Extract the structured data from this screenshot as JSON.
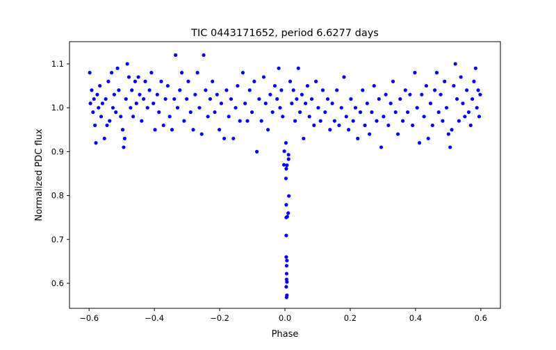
{
  "chart_data": {
    "type": "scatter",
    "title": "TIC 0443171652, period 6.6277 days",
    "xlabel": "Phase",
    "ylabel": "Normalized PDC flux",
    "xlim": [
      -0.66,
      0.66
    ],
    "ylim": [
      0.543,
      1.1506
    ],
    "xticks": [
      -0.6,
      -0.4,
      -0.2,
      0.0,
      0.2,
      0.4,
      0.6
    ],
    "xtick_labels": [
      "−0.6",
      "−0.4",
      "−0.2",
      "0.0",
      "0.2",
      "0.4",
      "0.6"
    ],
    "yticks": [
      0.6,
      0.7,
      0.8,
      0.9,
      1.0,
      1.1
    ],
    "ytick_labels": [
      "0.6",
      "0.7",
      "0.8",
      "0.9",
      "1.0",
      "1.1"
    ],
    "grid": false,
    "marker_color": "#0000ff",
    "series": [
      {
        "name": "flux",
        "points": [
          [
            -0.598,
            1.08
          ],
          [
            -0.596,
            1.01
          ],
          [
            -0.592,
            1.04
          ],
          [
            -0.588,
            0.99
          ],
          [
            -0.585,
            1.02
          ],
          [
            -0.582,
            0.96
          ],
          [
            -0.579,
            0.92
          ],
          [
            -0.575,
            1.03
          ],
          [
            -0.571,
            1.0
          ],
          [
            -0.567,
            1.05
          ],
          [
            -0.563,
            0.98
          ],
          [
            -0.559,
            1.01
          ],
          [
            -0.553,
            0.93
          ],
          [
            -0.549,
            1.02
          ],
          [
            -0.545,
            0.96
          ],
          [
            -0.541,
            1.06
          ],
          [
            -0.537,
            0.97
          ],
          [
            -0.531,
            1.08
          ],
          [
            -0.527,
            1.0
          ],
          [
            -0.523,
            1.03
          ],
          [
            -0.518,
            0.99
          ],
          [
            -0.513,
            1.09
          ],
          [
            -0.509,
            1.04
          ],
          [
            -0.503,
            0.98
          ],
          [
            -0.497,
            0.95
          ],
          [
            -0.494,
            0.91
          ],
          [
            -0.491,
            0.93
          ],
          [
            -0.487,
            1.02
          ],
          [
            -0.483,
            1.1
          ],
          [
            -0.478,
            1.07
          ],
          [
            -0.473,
            1.0
          ],
          [
            -0.469,
            1.04
          ],
          [
            -0.465,
            0.98
          ],
          [
            -0.459,
            1.06
          ],
          [
            -0.455,
            1.01
          ],
          [
            -0.449,
            1.07
          ],
          [
            -0.445,
            1.03
          ],
          [
            -0.439,
            0.97
          ],
          [
            -0.433,
            1.02
          ],
          [
            -0.428,
            1.06
          ],
          [
            -0.421,
            1.0
          ],
          [
            -0.415,
            1.04
          ],
          [
            -0.409,
            1.08
          ],
          [
            -0.403,
            1.01
          ],
          [
            -0.398,
            0.95
          ],
          [
            -0.391,
            1.03
          ],
          [
            -0.386,
            0.99
          ],
          [
            -0.379,
            1.06
          ],
          [
            -0.372,
            0.96
          ],
          [
            -0.366,
            1.02
          ],
          [
            -0.359,
            1.05
          ],
          [
            -0.353,
            0.98
          ],
          [
            -0.346,
            0.95
          ],
          [
            -0.339,
            1.02
          ],
          [
            -0.335,
            1.12
          ],
          [
            -0.329,
            1.0
          ],
          [
            -0.322,
            1.04
          ],
          [
            -0.316,
            1.08
          ],
          [
            -0.309,
            0.97
          ],
          [
            -0.301,
            1.02
          ],
          [
            -0.296,
            1.06
          ],
          [
            -0.289,
            0.99
          ],
          [
            -0.281,
            0.95
          ],
          [
            -0.275,
            1.03
          ],
          [
            -0.268,
            1.08
          ],
          [
            -0.262,
            1.0
          ],
          [
            -0.255,
            0.94
          ],
          [
            -0.249,
            1.12
          ],
          [
            -0.243,
            1.04
          ],
          [
            -0.236,
            0.98
          ],
          [
            -0.229,
            1.02
          ],
          [
            -0.222,
            1.06
          ],
          [
            -0.215,
            0.99
          ],
          [
            -0.208,
            1.03
          ],
          [
            -0.201,
            0.95
          ],
          [
            -0.195,
            1.01
          ],
          [
            -0.186,
            0.93
          ],
          [
            -0.179,
            1.04
          ],
          [
            -0.172,
            0.98
          ],
          [
            -0.165,
            1.02
          ],
          [
            -0.158,
            0.93
          ],
          [
            -0.151,
            1.0
          ],
          [
            -0.145,
            1.05
          ],
          [
            -0.138,
            0.97
          ],
          [
            -0.129,
            1.08
          ],
          [
            -0.122,
            1.01
          ],
          [
            -0.115,
            0.97
          ],
          [
            -0.108,
            1.04
          ],
          [
            -0.101,
            0.99
          ],
          [
            -0.094,
            1.06
          ],
          [
            -0.086,
            0.9
          ],
          [
            -0.079,
            1.02
          ],
          [
            -0.072,
            0.97
          ],
          [
            -0.065,
            1.07
          ],
          [
            -0.059,
            1.01
          ],
          [
            -0.052,
            0.95
          ],
          [
            -0.045,
            1.03
          ],
          [
            -0.038,
            0.99
          ],
          [
            -0.031,
            1.05
          ],
          [
            -0.024,
            1.02
          ],
          [
            -0.019,
            1.09
          ],
          [
            -0.015,
            1.0
          ],
          [
            -0.011,
            1.04
          ],
          [
            -0.007,
            0.98
          ],
          [
            -0.003,
            0.87
          ],
          [
            0.003,
            0.92
          ],
          [
            -0.002,
            0.901
          ],
          [
            0.011,
            0.893
          ],
          [
            0.011,
            0.883
          ],
          [
            0.006,
            0.869
          ],
          [
            0.004,
            0.861
          ],
          [
            0.003,
            0.839
          ],
          [
            0.012,
            0.799
          ],
          [
            0.004,
            0.779
          ],
          [
            0.01,
            0.76
          ],
          [
            0.007,
            0.752
          ],
          [
            0.004,
            0.75
          ],
          [
            0.004,
            0.709
          ],
          [
            0.004,
            0.66
          ],
          [
            0.006,
            0.652
          ],
          [
            0.005,
            0.64
          ],
          [
            0.005,
            0.622
          ],
          [
            0.005,
            0.609
          ],
          [
            0.006,
            0.603
          ],
          [
            0.004,
            0.592
          ],
          [
            0.006,
            0.573
          ],
          [
            0.005,
            0.568
          ],
          [
            0.016,
            1.06
          ],
          [
            0.021,
            1.01
          ],
          [
            0.026,
            1.04
          ],
          [
            0.031,
            0.97
          ],
          [
            0.036,
            1.02
          ],
          [
            0.041,
            1.09
          ],
          [
            0.046,
            0.99
          ],
          [
            0.052,
            1.03
          ],
          [
            0.057,
            0.93
          ],
          [
            0.063,
            1.01
          ],
          [
            0.069,
            1.05
          ],
          [
            0.075,
            0.98
          ],
          [
            0.082,
            1.02
          ],
          [
            0.089,
            0.96
          ],
          [
            0.095,
            1.06
          ],
          [
            0.102,
            1.0
          ],
          [
            0.109,
            0.97
          ],
          [
            0.116,
            1.04
          ],
          [
            0.123,
            0.99
          ],
          [
            0.131,
            1.02
          ],
          [
            0.138,
            0.95
          ],
          [
            0.145,
            1.01
          ],
          [
            0.152,
            0.97
          ],
          [
            0.159,
            1.04
          ],
          [
            0.166,
            0.96
          ],
          [
            0.173,
            1.0
          ],
          [
            0.181,
            1.07
          ],
          [
            0.188,
            0.98
          ],
          [
            0.195,
            0.95
          ],
          [
            0.202,
            1.02
          ],
          [
            0.209,
            0.97
          ],
          [
            0.216,
            1.0
          ],
          [
            0.223,
            0.93
          ],
          [
            0.231,
            0.99
          ],
          [
            0.238,
            1.04
          ],
          [
            0.245,
            0.96
          ],
          [
            0.252,
            1.01
          ],
          [
            0.259,
            0.94
          ],
          [
            0.266,
            0.99
          ],
          [
            0.273,
            1.05
          ],
          [
            0.281,
            0.97
          ],
          [
            0.288,
            1.02
          ],
          [
            0.295,
            0.91
          ],
          [
            0.302,
            0.98
          ],
          [
            0.309,
            1.03
          ],
          [
            0.317,
            0.96
          ],
          [
            0.324,
            1.01
          ],
          [
            0.331,
            1.06
          ],
          [
            0.339,
            0.99
          ],
          [
            0.346,
            0.94
          ],
          [
            0.353,
            1.02
          ],
          [
            0.361,
            0.97
          ],
          [
            0.369,
            1.04
          ],
          [
            0.376,
            0.99
          ],
          [
            0.383,
            1.03
          ],
          [
            0.391,
            0.96
          ],
          [
            0.398,
            1.08
          ],
          [
            0.405,
            1.0
          ],
          [
            0.412,
            0.92
          ],
          [
            0.419,
            1.03
          ],
          [
            0.426,
            0.98
          ],
          [
            0.433,
            1.05
          ],
          [
            0.439,
            0.93
          ],
          [
            0.446,
            1.01
          ],
          [
            0.452,
            0.96
          ],
          [
            0.459,
            1.04
          ],
          [
            0.465,
            1.08
          ],
          [
            0.471,
            0.99
          ],
          [
            0.477,
            1.03
          ],
          [
            0.483,
            0.97
          ],
          [
            0.489,
            1.06
          ],
          [
            0.495,
            1.0
          ],
          [
            0.501,
            0.94
          ],
          [
            0.506,
            0.91
          ],
          [
            0.511,
            0.95
          ],
          [
            0.517,
            1.05
          ],
          [
            0.522,
            1.1
          ],
          [
            0.527,
            1.02
          ],
          [
            0.533,
            0.97
          ],
          [
            0.539,
            1.07
          ],
          [
            0.545,
            1.01
          ],
          [
            0.551,
            0.98
          ],
          [
            0.557,
            1.04
          ],
          [
            0.563,
            0.99
          ],
          [
            0.569,
            0.96
          ],
          [
            0.574,
            1.02
          ],
          [
            0.579,
            1.06
          ],
          [
            0.584,
            1.09
          ],
          [
            0.588,
            1.0
          ],
          [
            0.592,
            1.04
          ],
          [
            0.595,
            0.98
          ],
          [
            0.598,
            1.03
          ]
        ]
      }
    ]
  }
}
